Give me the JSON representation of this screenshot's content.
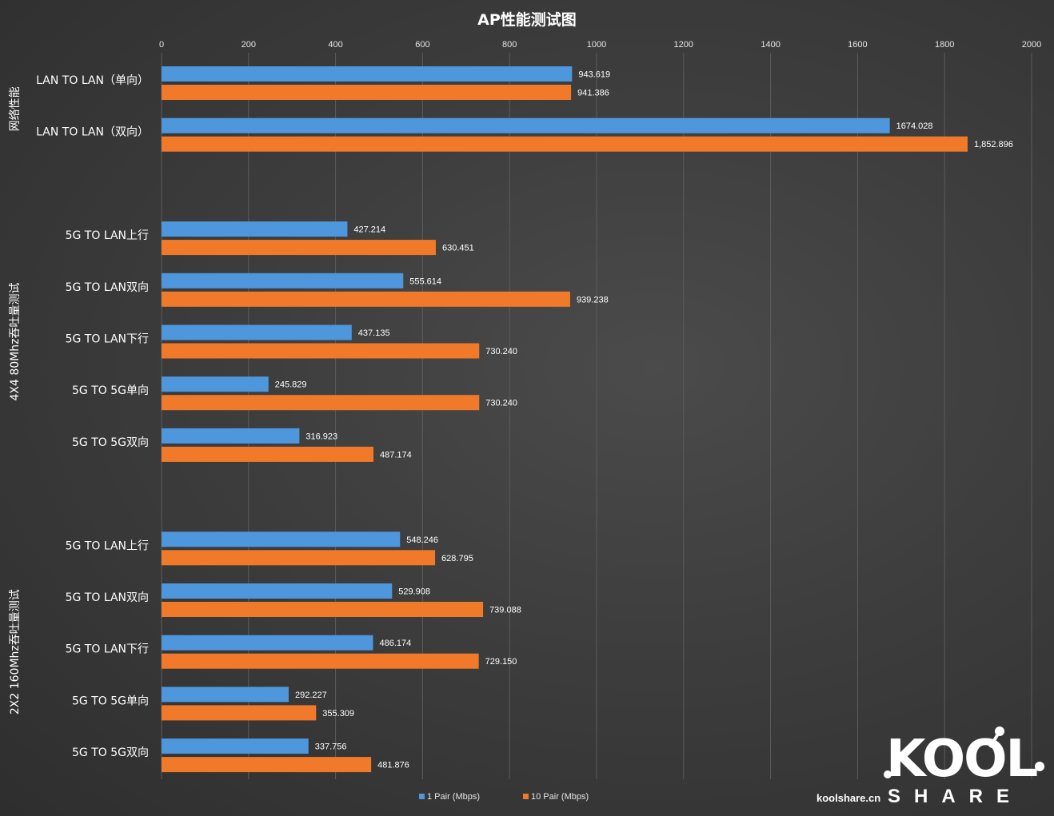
{
  "chart_data": {
    "type": "bar",
    "orientation": "horizontal",
    "title": "AP性能测试图",
    "xlim": [
      0,
      2000
    ],
    "x_ticks": [
      "0",
      "200",
      "400",
      "600",
      "800",
      "1000",
      "1200",
      "1400",
      "1600",
      "1800",
      "2000"
    ],
    "x_tick_values": [
      0,
      200,
      400,
      600,
      800,
      1000,
      1200,
      1400,
      1600,
      1800,
      2000
    ],
    "grid": true,
    "legend_position": "bottom",
    "series": [
      {
        "name": "1 Pair (Mbps)",
        "color": "#4f97dc"
      },
      {
        "name": "10 Pair (Mbps)",
        "color": "#f07a2a"
      }
    ],
    "groups": [
      {
        "name": "网络性能",
        "categories": [
          {
            "label": "LAN TO LAN（单向）",
            "values": [
              943.619,
              941.386
            ],
            "labels": [
              "943.619",
              "941.386"
            ]
          },
          {
            "label": "LAN TO LAN（双向）",
            "values": [
              1674.028,
              1852.896
            ],
            "labels": [
              "1674.028",
              "1,852.896"
            ]
          }
        ]
      },
      {
        "name": "4X4 80Mhz吞吐量测试",
        "categories": [
          {
            "label": "5G TO LAN上行",
            "values": [
              427.214,
              630.451
            ],
            "labels": [
              "427.214",
              "630.451"
            ]
          },
          {
            "label": "5G TO LAN双向",
            "values": [
              555.614,
              939.238
            ],
            "labels": [
              "555.614",
              "939.238"
            ]
          },
          {
            "label": "5G TO LAN下行",
            "values": [
              437.135,
              730.24
            ],
            "labels": [
              "437.135",
              "730.240"
            ]
          },
          {
            "label": "5G TO 5G单向",
            "values": [
              245.829,
              730.24
            ],
            "labels": [
              "245.829",
              "730.240"
            ]
          },
          {
            "label": "5G TO 5G双向",
            "values": [
              316.923,
              487.174
            ],
            "labels": [
              "316.923",
              "487.174"
            ]
          }
        ]
      },
      {
        "name": "2X2 160Mhz吞吐量测试",
        "categories": [
          {
            "label": "5G TO LAN上行",
            "values": [
              548.246,
              628.795
            ],
            "labels": [
              "548.246",
              "628.795"
            ]
          },
          {
            "label": "5G TO LAN双向",
            "values": [
              529.908,
              739.088
            ],
            "labels": [
              "529.908",
              "739.088"
            ]
          },
          {
            "label": "5G TO LAN下行",
            "values": [
              486.174,
              729.15
            ],
            "labels": [
              "486.174",
              "729.150"
            ]
          },
          {
            "label": "5G TO 5G单向",
            "values": [
              292.227,
              355.309
            ],
            "labels": [
              "292.227",
              "355.309"
            ]
          },
          {
            "label": "5G TO 5G双向",
            "values": [
              337.756,
              481.876
            ],
            "labels": [
              "337.756",
              "481.876"
            ]
          }
        ]
      }
    ]
  },
  "watermark": {
    "site": "koolshare.cn",
    "logo_main": "KOOL",
    "logo_sub": "SHARE"
  }
}
